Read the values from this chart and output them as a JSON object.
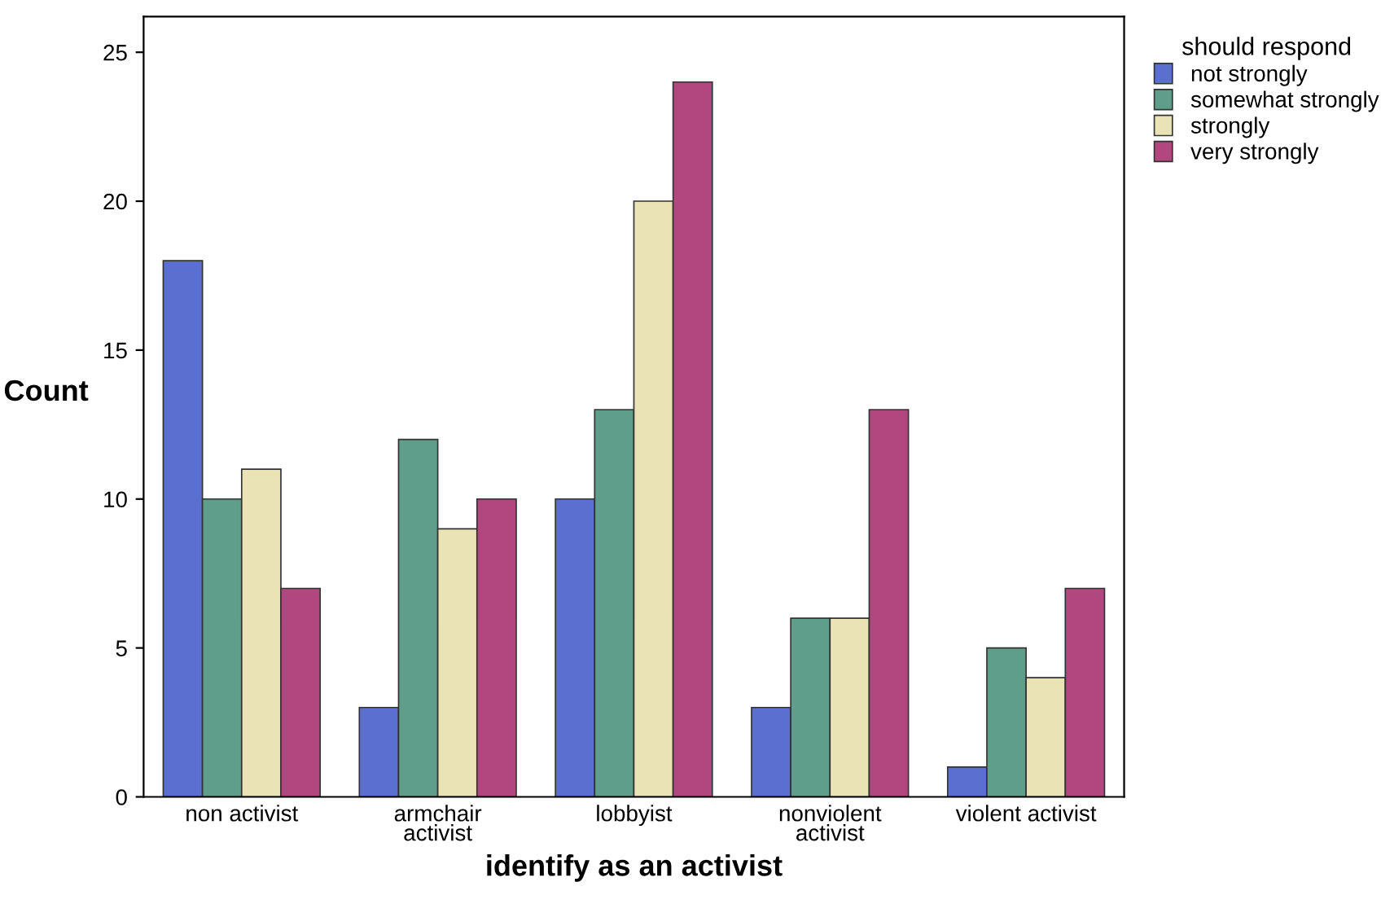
{
  "chart_data": {
    "type": "bar",
    "xlabel": "identify as an activist",
    "ylabel": "Count",
    "legend_title": "should respond",
    "categories": [
      "non activist",
      "armchair\nactivist",
      "lobbyist",
      "nonviolent\nactivist",
      "violent activist"
    ],
    "series": [
      {
        "name": "not strongly",
        "color": "#5b6fd1",
        "values": [
          18,
          3,
          10,
          3,
          1
        ]
      },
      {
        "name": "somewhat strongly",
        "color": "#5f9e8a",
        "values": [
          10,
          12,
          13,
          6,
          5
        ]
      },
      {
        "name": "strongly",
        "color": "#e9e3b5",
        "values": [
          11,
          9,
          20,
          6,
          4
        ]
      },
      {
        "name": "very strongly",
        "color": "#b2467f",
        "values": [
          7,
          10,
          24,
          13,
          7
        ]
      }
    ],
    "ylim": [
      0,
      26.2
    ],
    "yticks": [
      0,
      5,
      10,
      15,
      20,
      25
    ],
    "grid": false,
    "legend": "right"
  }
}
